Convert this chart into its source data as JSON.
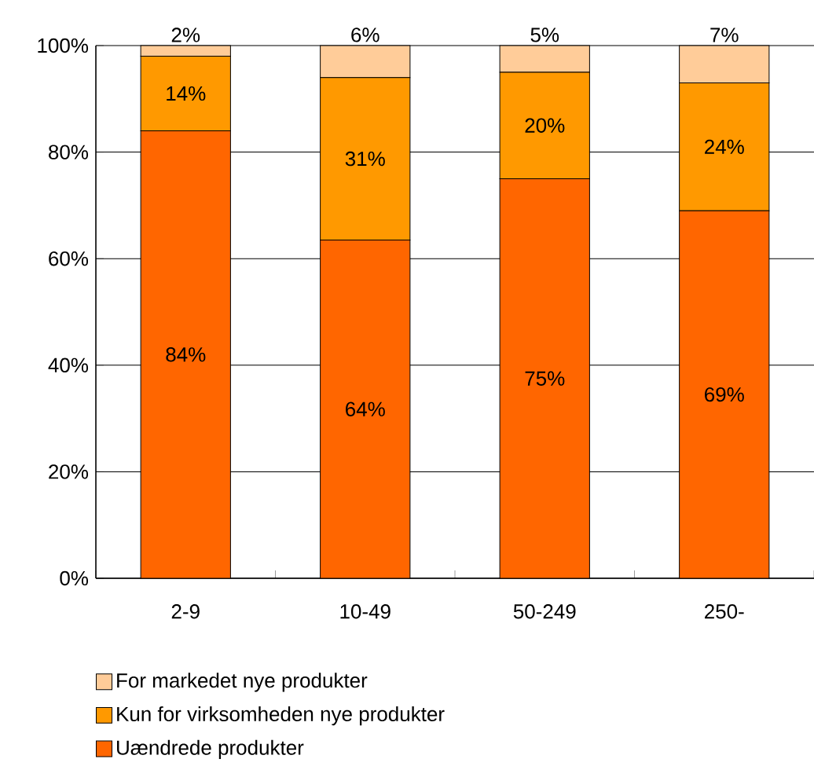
{
  "chart_data": {
    "type": "bar",
    "stacked": true,
    "categories": [
      "2-9",
      "10-49",
      "50-249",
      "250-"
    ],
    "series": [
      {
        "name": "Uændrede produkter",
        "color": "#ff6600",
        "values": [
          84,
          63.5,
          75,
          69
        ],
        "value_labels": [
          "84%",
          "64%",
          "75%",
          "69%"
        ]
      },
      {
        "name": "Kun for virksomheden nye produkter",
        "color": "#ff9900",
        "values": [
          14,
          30.5,
          20,
          24
        ],
        "value_labels": [
          "14%",
          "31%",
          "20%",
          "24%"
        ]
      },
      {
        "name": "For markedet nye produkter",
        "color": "#ffcc99",
        "values": [
          2,
          6,
          5,
          7
        ],
        "value_labels": [
          "2%",
          "6%",
          "5%",
          "7%"
        ]
      }
    ],
    "ylim": [
      0,
      100
    ],
    "yticks": [
      {
        "value": 0,
        "label": "0%"
      },
      {
        "value": 20,
        "label": "20%"
      },
      {
        "value": 40,
        "label": "40%"
      },
      {
        "value": 60,
        "label": "60%"
      },
      {
        "value": 80,
        "label": "80%"
      },
      {
        "value": 100,
        "label": "100%"
      }
    ],
    "grid": "y",
    "legend": "bottom"
  }
}
